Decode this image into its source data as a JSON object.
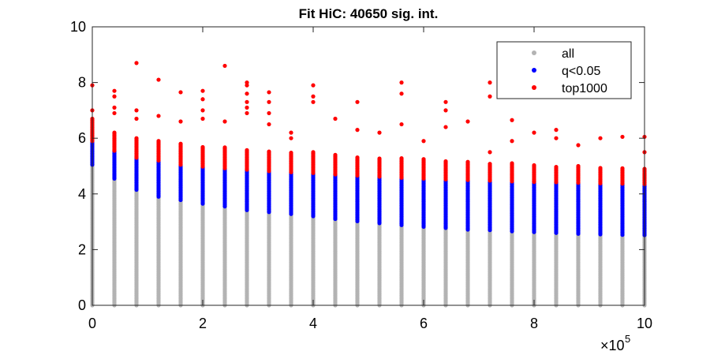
{
  "chart_data": {
    "type": "scatter",
    "title": "Fit HiC: 40650 sig. int.",
    "xlabel": "",
    "ylabel": "",
    "xlim": [
      0,
      1000000
    ],
    "ylim": [
      0,
      10
    ],
    "x_ticks": [
      0,
      2,
      4,
      6,
      8,
      10
    ],
    "y_ticks": [
      0,
      2,
      4,
      6,
      8,
      10
    ],
    "x_multiplier_base": "×10",
    "x_multiplier_exponent": "5",
    "grid": false,
    "legend_position": "top-right",
    "x": [
      0,
      40000,
      80000,
      120000,
      160000,
      200000,
      240000,
      280000,
      320000,
      360000,
      400000,
      440000,
      480000,
      520000,
      560000,
      600000,
      640000,
      680000,
      720000,
      760000,
      800000,
      840000,
      880000,
      920000,
      960000,
      1000000
    ],
    "series": [
      {
        "name": "all",
        "color": "#b3b3b3",
        "range_min": [
          0.0,
          0.0,
          0.0,
          0.0,
          0.0,
          0.0,
          0.0,
          0.0,
          0.0,
          0.0,
          0.0,
          0.0,
          0.0,
          0.0,
          0.0,
          0.0,
          0.0,
          0.0,
          0.0,
          0.0,
          0.0,
          0.0,
          0.0,
          0.0,
          0.0,
          0.0
        ],
        "range_max": [
          5.05,
          4.55,
          4.15,
          3.9,
          3.78,
          3.65,
          3.55,
          3.42,
          3.35,
          3.28,
          3.2,
          3.1,
          3.02,
          2.95,
          2.88,
          2.82,
          2.78,
          2.72,
          2.7,
          2.66,
          2.63,
          2.6,
          2.57,
          2.55,
          2.53,
          2.52
        ]
      },
      {
        "name": "q<0.05",
        "color": "#0000ff",
        "range_min": [
          5.05,
          4.55,
          4.15,
          3.9,
          3.78,
          3.65,
          3.55,
          3.42,
          3.35,
          3.28,
          3.2,
          3.1,
          3.02,
          2.95,
          2.88,
          2.82,
          2.78,
          2.72,
          2.7,
          2.66,
          2.63,
          2.6,
          2.57,
          2.55,
          2.53,
          2.52
        ],
        "range_max": [
          5.9,
          5.55,
          5.3,
          5.2,
          5.05,
          4.98,
          4.92,
          4.87,
          4.82,
          4.78,
          4.75,
          4.7,
          4.66,
          4.62,
          4.58,
          4.55,
          4.52,
          4.5,
          4.48,
          4.45,
          4.43,
          4.42,
          4.4,
          4.38,
          4.37,
          4.35
        ]
      },
      {
        "name": "top1000",
        "color": "#ff0000",
        "range_min": [
          5.9,
          5.55,
          5.3,
          5.2,
          5.05,
          4.98,
          4.92,
          4.87,
          4.82,
          4.78,
          4.75,
          4.7,
          4.66,
          4.62,
          4.58,
          4.55,
          4.52,
          4.5,
          4.48,
          4.45,
          4.43,
          4.42,
          4.4,
          4.38,
          4.37,
          4.35
        ],
        "range_max": [
          6.7,
          6.2,
          6.0,
          5.9,
          5.8,
          5.7,
          5.7,
          5.6,
          5.55,
          5.5,
          5.5,
          5.4,
          5.35,
          5.3,
          5.3,
          5.25,
          5.2,
          5.15,
          5.1,
          5.1,
          5.05,
          5.0,
          5.0,
          4.95,
          4.95,
          4.9
        ],
        "outliers": [
          [
            0,
            7.9
          ],
          [
            0,
            7.0
          ],
          [
            40000,
            7.7
          ],
          [
            40000,
            7.5
          ],
          [
            40000,
            7.1
          ],
          [
            40000,
            6.9
          ],
          [
            80000,
            8.7
          ],
          [
            80000,
            7.0
          ],
          [
            80000,
            6.7
          ],
          [
            120000,
            8.1
          ],
          [
            120000,
            6.8
          ],
          [
            160000,
            7.65
          ],
          [
            160000,
            6.6
          ],
          [
            200000,
            7.7
          ],
          [
            200000,
            7.4
          ],
          [
            200000,
            7.0
          ],
          [
            200000,
            6.7
          ],
          [
            240000,
            8.6
          ],
          [
            240000,
            6.6
          ],
          [
            280000,
            8.0
          ],
          [
            280000,
            7.9
          ],
          [
            280000,
            7.6
          ],
          [
            280000,
            7.3
          ],
          [
            280000,
            7.1
          ],
          [
            280000,
            6.9
          ],
          [
            320000,
            7.65
          ],
          [
            320000,
            7.3
          ],
          [
            320000,
            6.9
          ],
          [
            320000,
            6.5
          ],
          [
            360000,
            6.2
          ],
          [
            360000,
            6.0
          ],
          [
            400000,
            7.9
          ],
          [
            400000,
            7.5
          ],
          [
            400000,
            7.3
          ],
          [
            440000,
            6.7
          ],
          [
            480000,
            7.3
          ],
          [
            480000,
            6.3
          ],
          [
            520000,
            6.2
          ],
          [
            560000,
            8.0
          ],
          [
            560000,
            7.6
          ],
          [
            560000,
            6.5
          ],
          [
            600000,
            5.9
          ],
          [
            640000,
            7.3
          ],
          [
            640000,
            7.0
          ],
          [
            640000,
            6.4
          ],
          [
            680000,
            6.6
          ],
          [
            720000,
            8.0
          ],
          [
            720000,
            7.5
          ],
          [
            720000,
            5.5
          ],
          [
            760000,
            6.65
          ],
          [
            760000,
            5.9
          ],
          [
            800000,
            6.2
          ],
          [
            840000,
            6.3
          ],
          [
            840000,
            6.0
          ],
          [
            880000,
            5.75
          ],
          [
            920000,
            6.0
          ],
          [
            960000,
            6.05
          ],
          [
            1000000,
            6.05
          ],
          [
            1000000,
            5.5
          ]
        ]
      }
    ]
  }
}
